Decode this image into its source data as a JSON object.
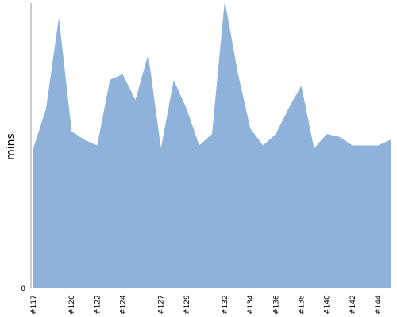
{
  "chart_data": {
    "type": "area",
    "xlabel": "",
    "ylabel": "mins",
    "ylim": [
      0,
      100
    ],
    "y_tick_labels": [
      "0"
    ],
    "grid": false,
    "legend": "none",
    "x_tick_labels": [
      "#117",
      "#120",
      "#122",
      "#124",
      "#127",
      "#129",
      "#132",
      "#134",
      "#136",
      "#138",
      "#140",
      "#142",
      "#144"
    ],
    "colors": {
      "fill": "#8fb2db",
      "axis": "#999999"
    },
    "series": [
      {
        "x": [
          "#117",
          "#118",
          "#119",
          "#120",
          "#121",
          "#122",
          "#123",
          "#124",
          "#125",
          "#126",
          "#127",
          "#128",
          "#129",
          "#130",
          "#131",
          "#132",
          "#133",
          "#134",
          "#135",
          "#136",
          "#137",
          "#138",
          "#139",
          "#140",
          "#141",
          "#142",
          "#143",
          "#144",
          "#145"
        ],
        "values": [
          49,
          63,
          95,
          55,
          52,
          50,
          73,
          75,
          66,
          82,
          49,
          73,
          63,
          50,
          54,
          101,
          76,
          56,
          50,
          54,
          63,
          71,
          49,
          54,
          53,
          50,
          50,
          50,
          52
        ]
      }
    ]
  }
}
